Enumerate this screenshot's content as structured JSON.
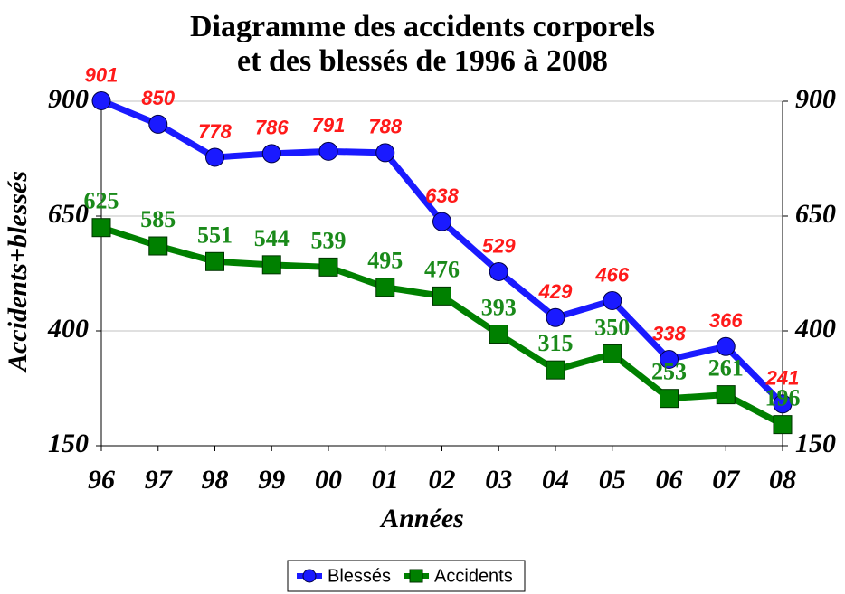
{
  "chart_data": {
    "type": "line",
    "title": [
      "Diagramme des accidents corporels",
      "et des blessés de 1996 à 2008"
    ],
    "x_label": "Années",
    "y_label": "Accidents+blessés",
    "categories": [
      "96",
      "97",
      "98",
      "99",
      "00",
      "01",
      "02",
      "03",
      "04",
      "05",
      "06",
      "07",
      "08"
    ],
    "series": [
      {
        "name": "Blessés",
        "color": "#1a1aff",
        "label_color": "#ff1a1a",
        "marker": "circle",
        "values": [
          901,
          850,
          778,
          786,
          791,
          788,
          638,
          529,
          429,
          466,
          338,
          366,
          241
        ]
      },
      {
        "name": "Accidents",
        "color": "#008000",
        "label_color": "#1a8a1a",
        "marker": "square",
        "values": [
          625,
          585,
          551,
          544,
          539,
          495,
          476,
          393,
          315,
          350,
          253,
          261,
          196
        ]
      }
    ],
    "ylim": [
      150,
      900
    ],
    "yticks": [
      150,
      400,
      650,
      900
    ],
    "y2lim": [
      150,
      900
    ],
    "y2ticks": [
      150,
      400,
      650,
      900
    ],
    "grid": true,
    "legend": "bottom"
  }
}
